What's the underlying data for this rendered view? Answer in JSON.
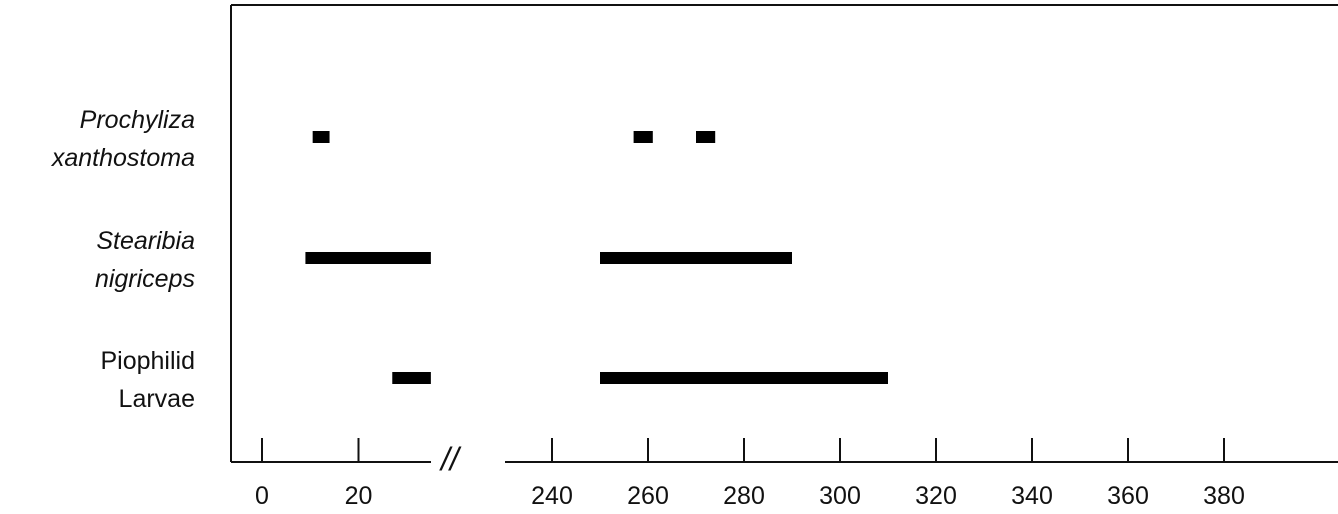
{
  "chart_data": {
    "type": "bar",
    "subtype": "gantt-range",
    "title": "",
    "xlabel": "",
    "ylabel": "",
    "axis_break_symbol": "//",
    "x_segments": [
      {
        "range": [
          -5,
          35
        ],
        "ticks": [
          0,
          20
        ],
        "tick_labels": [
          "0",
          "20"
        ]
      },
      {
        "range": [
          228,
          400
        ],
        "ticks": [
          240,
          260,
          280,
          300,
          320,
          340,
          360,
          380
        ],
        "tick_labels": [
          "240",
          "260",
          "280",
          "300",
          "320",
          "340",
          "360",
          "380"
        ]
      }
    ],
    "grid": false,
    "legend": "none",
    "series": [
      {
        "label_lines": [
          "Prochyliza",
          "xanthostoma"
        ],
        "italic": true,
        "ranges": [
          [
            10.5,
            14
          ],
          [
            257,
            261
          ],
          [
            270,
            274
          ]
        ]
      },
      {
        "label_lines": [
          "Stearibia",
          "nigriceps"
        ],
        "italic": true,
        "ranges": [
          [
            9,
            35
          ],
          [
            250,
            290
          ]
        ]
      },
      {
        "label_lines": [
          "Piophilid",
          "Larvae"
        ],
        "italic": false,
        "ranges": [
          [
            27,
            35
          ],
          [
            250,
            310
          ]
        ]
      }
    ]
  },
  "colors": {
    "bar": "#000000",
    "axis": "#111111",
    "background": "#ffffff"
  }
}
